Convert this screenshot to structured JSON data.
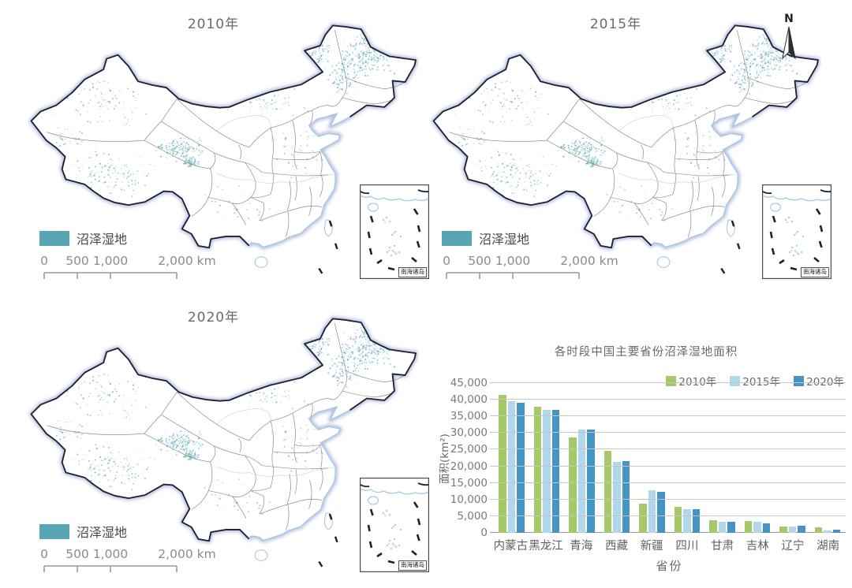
{
  "maps": [
    {
      "title": "2010年",
      "legend_label": "沼泽湿地",
      "scale_labels": [
        "0",
        "500",
        "1,000",
        "2,000 km"
      ],
      "inset_label": "南海诸岛"
    },
    {
      "title": "2015年",
      "legend_label": "沼泽湿地",
      "scale_labels": [
        "0",
        "500",
        "1,000",
        "2,000 km"
      ],
      "inset_label": "南海诸岛"
    },
    {
      "title": "2020年",
      "legend_label": "沼泽湿地",
      "scale_labels": [
        "0",
        "500",
        "1,000",
        "2,000 km"
      ],
      "inset_label": "南海诸岛"
    }
  ],
  "north": {
    "label": "N"
  },
  "chart_data": {
    "type": "bar",
    "title": "各时段中国主要省份沼泽湿地面积",
    "xlabel": "省份",
    "ylabel": "面积(km²)",
    "categories": [
      "内蒙古",
      "黑龙江",
      "青海",
      "西藏",
      "新疆",
      "四川",
      "甘肃",
      "吉林",
      "辽宁",
      "湖南"
    ],
    "series": [
      {
        "name": "2010年",
        "color": "#a5c868",
        "values": [
          41500,
          38000,
          28700,
          24600,
          8700,
          7900,
          3800,
          3600,
          1900,
          1700
        ]
      },
      {
        "name": "2015年",
        "color": "#b0d8ea",
        "values": [
          39600,
          37000,
          31000,
          21400,
          12800,
          7100,
          3300,
          3300,
          1900,
          700
        ]
      },
      {
        "name": "2020年",
        "color": "#4494c4",
        "values": [
          39100,
          37000,
          31000,
          21500,
          12300,
          7200,
          3300,
          2900,
          2100,
          1000
        ]
      }
    ],
    "ylim": [
      0,
      45000
    ],
    "ytick_step": 5000,
    "ytick_labels": [
      "0",
      "5,000",
      "10,000",
      "15,000",
      "20,000",
      "25,000",
      "30,000",
      "35,000",
      "40,000",
      "45,000"
    ],
    "grid": true,
    "legend_position": "top-right"
  },
  "map_style": {
    "wetland_color": "#57a5b5",
    "dot_color": "#6fb3bf",
    "border_color": "#1a2133",
    "glow_color": "#b3bcdf",
    "province_color": "#8f8f8f",
    "coast_color": "#a7cadf"
  }
}
